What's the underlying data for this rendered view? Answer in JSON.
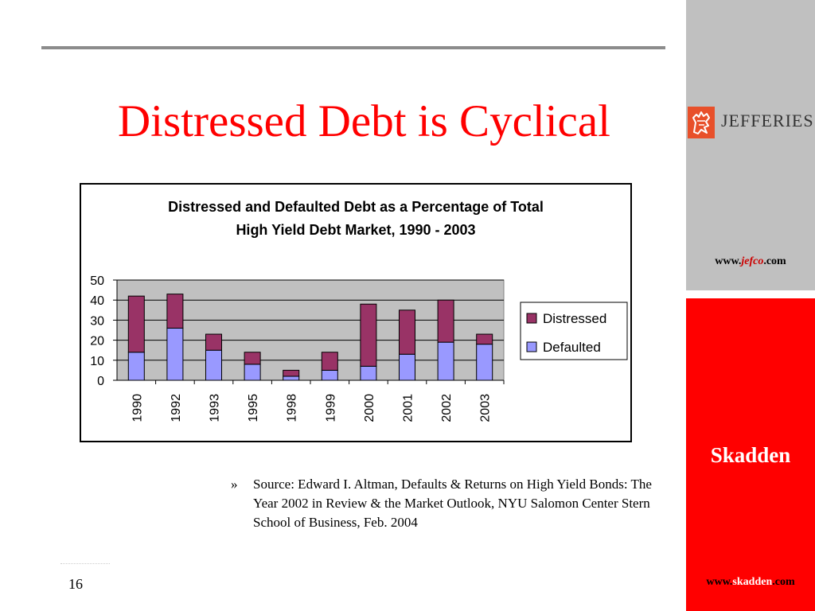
{
  "slide": {
    "title": "Distressed Debt is Cyclical",
    "page_number": "16",
    "source_bullet": "»",
    "source_text": "Source: Edward I. Altman, Defaults & Returns on High Yield Bonds: The Year 2002 in Review & the Market Outlook, NYU Salomon Center Stern School of Business, Feb. 2004"
  },
  "sidebar": {
    "logo_text": "JEFFERIES",
    "jefco_prefix": "www.",
    "jefco_mid": "jefco",
    "jefco_suffix": ".com",
    "skadden_name": "Skadden",
    "skadden_prefix": "www.",
    "skadden_mid": "skadden",
    "skadden_suffix": ".com",
    "colors": {
      "gray_panel": "#c0c0c0",
      "red_panel": "#ff0000",
      "logo": "#e8502a"
    }
  },
  "chart_data": {
    "type": "bar",
    "stacked": true,
    "title_line1": "Distressed and Defaulted Debt as a Percentage of Total",
    "title_line2": "High Yield Debt Market, 1990 - 2003",
    "categories": [
      "1990",
      "1992",
      "1993",
      "1995",
      "1998",
      "1999",
      "2000",
      "2001",
      "2002",
      "2003"
    ],
    "series": [
      {
        "name": "Defaulted",
        "color": "#9999ff",
        "values": [
          14,
          26,
          15,
          8,
          2,
          5,
          7,
          13,
          19,
          18
        ]
      },
      {
        "name": "Distressed",
        "color": "#993366",
        "values": [
          28,
          17,
          8,
          6,
          3,
          9,
          31,
          22,
          21,
          5
        ]
      }
    ],
    "legend_order": [
      "Distressed",
      "Defaulted"
    ],
    "legend_position": "right",
    "ylim": [
      0,
      50
    ],
    "yticks": [
      0,
      10,
      20,
      30,
      40,
      50
    ],
    "plot_background": "#c0c0c0",
    "grid": true
  }
}
